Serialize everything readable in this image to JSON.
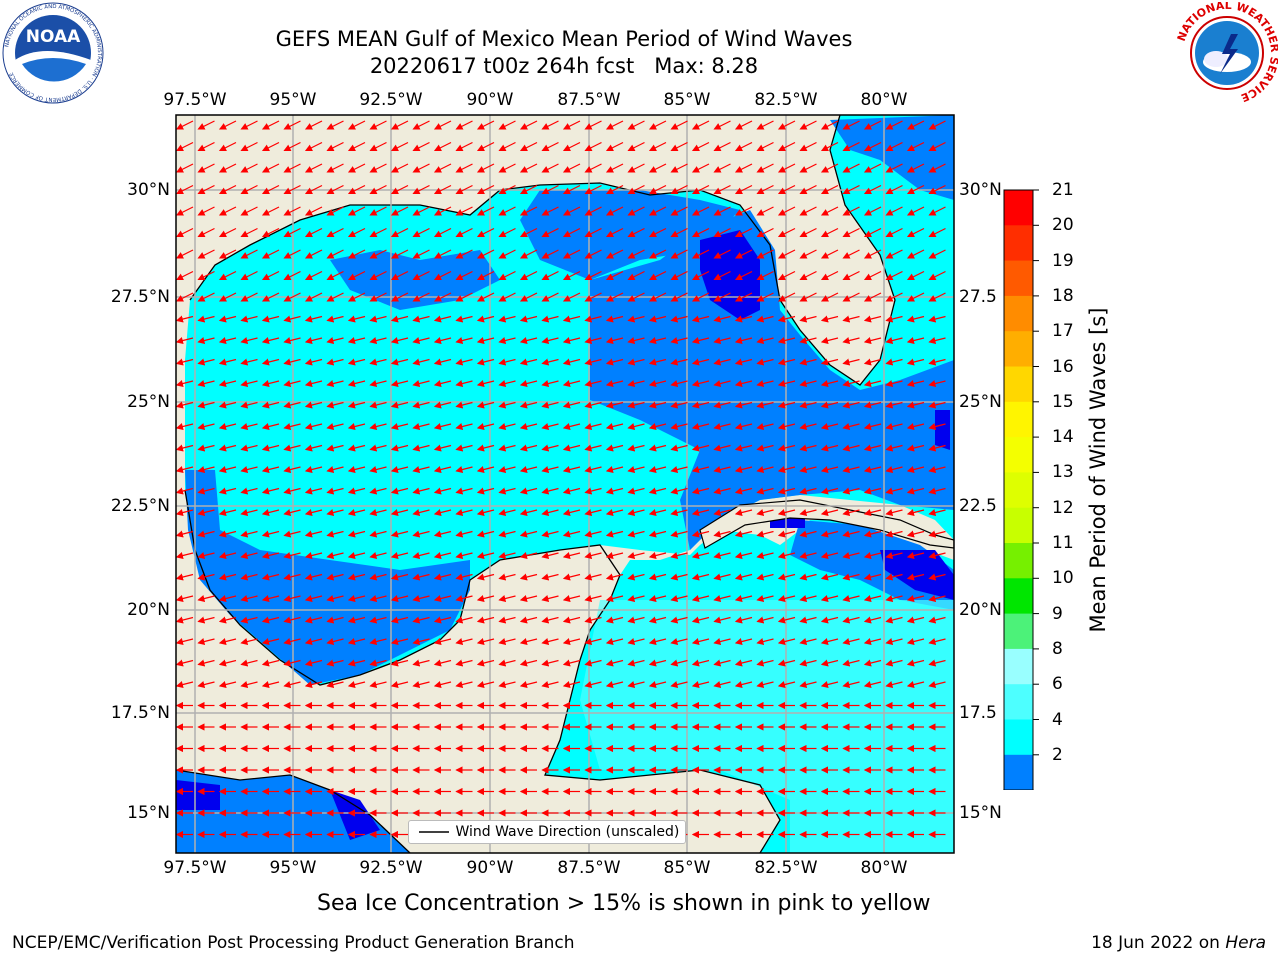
{
  "header": {
    "title_line1": "GEFS MEAN Gulf of Mexico Mean Period of Wind Waves",
    "title_line2": "20220617 t00z 264h fcst   Max: 8.28"
  },
  "logos": {
    "left": {
      "icon": "noaa-logo-icon",
      "text": "NOAA",
      "ring_text": "NATIONAL OCEANIC AND ATMOSPHERIC ADMINISTRATION · U.S. DEPARTMENT OF COMMERCE"
    },
    "right": {
      "icon": "nws-logo-icon",
      "ring_text": "NATIONAL WEATHER SERVICE"
    }
  },
  "map": {
    "lon_labels": [
      "97.5°W",
      "95°W",
      "92.5°W",
      "90°W",
      "87.5°W",
      "85°W",
      "82.5°W",
      "80°W"
    ],
    "lat_labels_left": [
      "30°N",
      "27.5°N",
      "25°N",
      "22.5°N",
      "20°N",
      "17.5°N",
      "15°N"
    ],
    "lat_labels_right": [
      "30°N",
      "27.5",
      "25°N",
      "22.5",
      "20°N",
      "17.5",
      "15°N"
    ],
    "legend_label": "Wind Wave Direction (unscaled)",
    "colors": {
      "land": "#efecdc",
      "grid": "#b0b0b0",
      "arrow": "#ff0000",
      "frame": "#000000"
    }
  },
  "colorbar": {
    "label": "Mean Period of Wind Waves [s]",
    "ticks": [
      "21",
      "20",
      "19",
      "18",
      "17",
      "16",
      "15",
      "14",
      "13",
      "12",
      "11",
      "10",
      "9",
      "8",
      "6",
      "4",
      "2"
    ],
    "colors": [
      "#ff0000",
      "#ff2e00",
      "#ff5a00",
      "#ff8c00",
      "#ffae00",
      "#ffd700",
      "#fff500",
      "#f4ff00",
      "#deff00",
      "#c8ff00",
      "#76f000",
      "#00e600",
      "#4cf279",
      "#99ffff",
      "#4dffff",
      "#00ffff",
      "#0080ff"
    ],
    "under_color": "#0000ee"
  },
  "caption": "Sea Ice Concentration > 15% is shown in pink to yellow",
  "footer": {
    "left": "NCEP/EMC/Verification Post Processing Product Generation Branch",
    "right_prefix": "18 Jun 2022 on ",
    "right_italic": "Hera"
  }
}
